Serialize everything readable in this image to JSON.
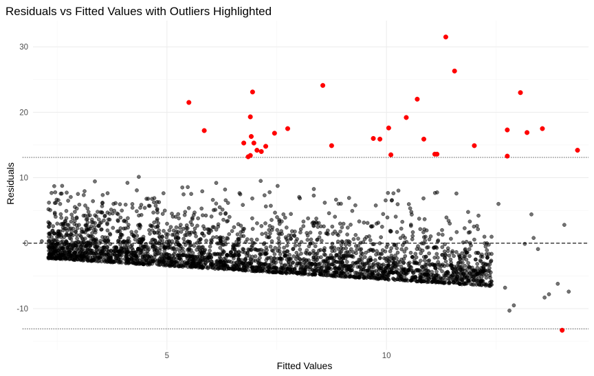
{
  "chart_data": {
    "type": "scatter",
    "title": "Residuals vs Fitted Values with Outliers Highlighted",
    "xlabel": "Fitted Values",
    "ylabel": "Residuals",
    "xlim": [
      1.95,
      14.6
    ],
    "ylim": [
      -16.3,
      34
    ],
    "x_ticks": [
      5,
      10
    ],
    "x_tick_labels": [
      "5",
      "10"
    ],
    "y_ticks": [
      -10,
      0,
      10,
      20,
      30
    ],
    "y_tick_labels": [
      "-10",
      "0",
      "10",
      "20",
      "30"
    ],
    "grid": true,
    "legend": "none",
    "reference_lines": [
      {
        "y": 0,
        "style": "dashed"
      },
      {
        "y": 13.1,
        "style": "dotted"
      },
      {
        "y": -13.1,
        "style": "dotted"
      }
    ],
    "colors": {
      "normal": "#000000",
      "outlier": "#ff0000"
    },
    "residual_bands": {
      "fitted_range": [
        2.3,
        12.4
      ],
      "lower_residual_at_start": -2.2,
      "lower_residual_slope": -0.42,
      "note_band_level_step": 0.5
    },
    "outliers": [
      {
        "x": 5.5,
        "y": 21.5
      },
      {
        "x": 5.85,
        "y": 17.2
      },
      {
        "x": 6.75,
        "y": 15.3
      },
      {
        "x": 6.85,
        "y": 13.2
      },
      {
        "x": 6.9,
        "y": 19.3
      },
      {
        "x": 6.95,
        "y": 23.1
      },
      {
        "x": 6.92,
        "y": 16.3
      },
      {
        "x": 6.98,
        "y": 15.3
      },
      {
        "x": 6.9,
        "y": 13.4
      },
      {
        "x": 7.05,
        "y": 14.2
      },
      {
        "x": 7.15,
        "y": 14.0
      },
      {
        "x": 7.25,
        "y": 14.8
      },
      {
        "x": 7.45,
        "y": 16.8
      },
      {
        "x": 7.75,
        "y": 17.5
      },
      {
        "x": 8.55,
        "y": 24.1
      },
      {
        "x": 8.75,
        "y": 14.9
      },
      {
        "x": 9.7,
        "y": 16.0
      },
      {
        "x": 9.85,
        "y": 15.9
      },
      {
        "x": 10.05,
        "y": 17.6
      },
      {
        "x": 10.1,
        "y": 13.5
      },
      {
        "x": 10.45,
        "y": 19.2
      },
      {
        "x": 10.7,
        "y": 22.0
      },
      {
        "x": 10.85,
        "y": 15.9
      },
      {
        "x": 11.1,
        "y": 13.6
      },
      {
        "x": 11.15,
        "y": 13.6
      },
      {
        "x": 11.35,
        "y": 31.5
      },
      {
        "x": 11.55,
        "y": 26.3
      },
      {
        "x": 12.0,
        "y": 14.9
      },
      {
        "x": 12.75,
        "y": 17.3
      },
      {
        "x": 12.75,
        "y": 13.3
      },
      {
        "x": 13.05,
        "y": 23.0
      },
      {
        "x": 13.2,
        "y": 16.9
      },
      {
        "x": 13.55,
        "y": 17.5
      },
      {
        "x": 14.35,
        "y": 14.2
      },
      {
        "x": 14.0,
        "y": -13.3
      }
    ],
    "sparse_points": [
      {
        "x": 2.15,
        "y": 0.3
      },
      {
        "x": 2.3,
        "y": 3.2
      },
      {
        "x": 2.5,
        "y": -1.9
      },
      {
        "x": 2.58,
        "y": -2.0
      },
      {
        "x": 2.7,
        "y": 0.0
      },
      {
        "x": 13.15,
        "y": -0.1
      },
      {
        "x": 13.3,
        "y": 4.4
      },
      {
        "x": 13.35,
        "y": 0.8
      },
      {
        "x": 13.45,
        "y": -0.9
      },
      {
        "x": 13.6,
        "y": -8.3
      },
      {
        "x": 13.7,
        "y": -7.8
      },
      {
        "x": 13.9,
        "y": -6.2
      },
      {
        "x": 14.05,
        "y": 2.8
      },
      {
        "x": 14.15,
        "y": -7.4
      },
      {
        "x": 12.9,
        "y": -9.5
      },
      {
        "x": 12.7,
        "y": -6.8
      },
      {
        "x": 12.55,
        "y": 6.0
      },
      {
        "x": 12.8,
        "y": -10.3
      }
    ]
  }
}
